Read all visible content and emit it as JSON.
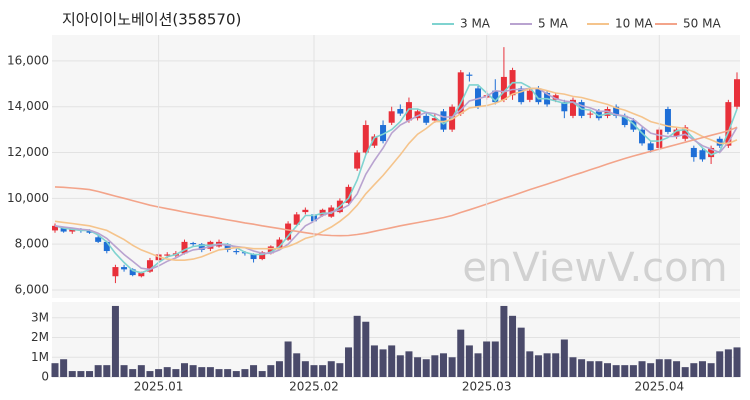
{
  "title": "지아이이노베이션(358570)",
  "watermark": "enViewV.com",
  "chart_data": [
    {
      "type": "candlestick",
      "open": [
        8600,
        8700,
        8550,
        8650,
        8600,
        8300,
        8100,
        6600,
        7000,
        6900,
        6600,
        6800,
        7300,
        7500,
        7500,
        7600,
        8050,
        8000,
        7800,
        7900,
        8000,
        7700,
        7650,
        7550,
        7350,
        7600,
        7850,
        8200,
        8850,
        9400,
        9300,
        9250,
        9200,
        9400,
        9800,
        11300,
        12000,
        12300,
        13200,
        13300,
        13900,
        13400,
        13500,
        13600,
        13400,
        13800,
        13000,
        13700,
        15400,
        14800,
        14400,
        14700,
        14300,
        14500,
        14800,
        14300,
        14800,
        14600,
        14300,
        14200,
        13600,
        14200,
        13700,
        13800,
        13600,
        14000,
        13600,
        13400,
        13000,
        12400,
        12200,
        13900,
        12700,
        12600,
        12200,
        12100,
        11800,
        12600,
        12300,
        14000
      ],
      "high": [
        8900,
        8750,
        8700,
        8700,
        8650,
        8400,
        8150,
        7100,
        7100,
        6950,
        6800,
        7400,
        7600,
        7650,
        7700,
        8200,
        8100,
        8050,
        8150,
        8200,
        8050,
        7800,
        7700,
        7600,
        7700,
        7950,
        8300,
        9000,
        9400,
        9600,
        9350,
        9550,
        9700,
        10000,
        10600,
        12100,
        13400,
        12800,
        13400,
        14000,
        14100,
        14400,
        13900,
        13700,
        13700,
        13900,
        14100,
        15600,
        15500,
        14900,
        14700,
        15200,
        16600,
        15700,
        14900,
        14800,
        14900,
        14700,
        14600,
        14300,
        14400,
        14300,
        13800,
        13900,
        14000,
        14100,
        13700,
        13500,
        13100,
        12500,
        13100,
        14000,
        13100,
        13200,
        12300,
        12200,
        12300,
        12700,
        14300,
        15500
      ],
      "low": [
        8500,
        8500,
        8450,
        8500,
        8450,
        8050,
        7600,
        6300,
        6800,
        6600,
        6550,
        6750,
        7200,
        7400,
        7400,
        7550,
        7900,
        7650,
        7700,
        7850,
        7650,
        7550,
        7500,
        7200,
        7300,
        7550,
        7800,
        8150,
        8800,
        9300,
        8950,
        9200,
        9150,
        9350,
        9750,
        11200,
        11900,
        12200,
        12400,
        13200,
        13600,
        13300,
        13400,
        13200,
        13300,
        12900,
        12900,
        13600,
        15100,
        13900,
        14300,
        14100,
        14200,
        14300,
        14100,
        14200,
        14100,
        14000,
        14200,
        13500,
        13500,
        13500,
        13500,
        13400,
        13500,
        13500,
        13100,
        12900,
        12300,
        12000,
        12100,
        12800,
        12600,
        12500,
        11600,
        11600,
        11500,
        12200,
        12200,
        13900
      ],
      "close": [
        8800,
        8550,
        8650,
        8600,
        8500,
        8100,
        7700,
        7000,
        6900,
        6650,
        6750,
        7300,
        7550,
        7550,
        7600,
        8100,
        8000,
        7750,
        8100,
        8100,
        7750,
        7650,
        7600,
        7350,
        7650,
        7900,
        8200,
        8900,
        9300,
        9500,
        9000,
        9500,
        9600,
        9900,
        10500,
        12000,
        13200,
        12700,
        12500,
        13800,
        13700,
        14200,
        13800,
        13300,
        13500,
        13000,
        14000,
        15500,
        15350,
        14000,
        14500,
        14200,
        15300,
        15600,
        14200,
        14700,
        14200,
        14100,
        14500,
        13800,
        14300,
        13600,
        13700,
        13500,
        13900,
        13600,
        13200,
        13000,
        12400,
        12100,
        13000,
        12900,
        13000,
        13100,
        11800,
        11700,
        12200,
        12300,
        14200,
        15200
      ],
      "up_color": "#e8303a",
      "down_color": "#1e6ed6",
      "series": [
        {
          "name": "3 MA",
          "color": "#7fd3d0",
          "values": [
            8800,
            8700,
            8650,
            8600,
            8600,
            8400,
            8100,
            7600,
            7200,
            6850,
            6750,
            6900,
            7200,
            7450,
            7550,
            7750,
            7900,
            7950,
            7950,
            8000,
            8000,
            7850,
            7650,
            7550,
            7550,
            7650,
            7900,
            8350,
            8800,
            9250,
            9250,
            9350,
            9350,
            9650,
            10000,
            10800,
            11900,
            12650,
            12800,
            13000,
            13350,
            13900,
            13900,
            13750,
            13550,
            13250,
            13500,
            14150,
            14950,
            14950,
            14600,
            14250,
            14650,
            15050,
            15050,
            14850,
            14350,
            14350,
            14250,
            14150,
            14200,
            13900,
            13850,
            13600,
            13700,
            13650,
            13550,
            13250,
            12850,
            12500,
            12500,
            12650,
            12950,
            13000,
            12600,
            12200,
            11900,
            12050,
            12900,
            13900
          ]
        },
        {
          "name": "5 MA",
          "color": "#b9a3d0",
          "values": [
            8800,
            8750,
            8700,
            8650,
            8620,
            8480,
            8250,
            7900,
            7550,
            7250,
            6950,
            6900,
            7050,
            7250,
            7400,
            7600,
            7750,
            7800,
            7900,
            8000,
            7950,
            7900,
            7850,
            7700,
            7600,
            7600,
            7750,
            8000,
            8400,
            8800,
            9000,
            9250,
            9400,
            9500,
            9700,
            10200,
            11050,
            11650,
            12200,
            12850,
            13200,
            13400,
            13600,
            13750,
            13700,
            13550,
            13550,
            13850,
            14250,
            14350,
            14450,
            14700,
            14650,
            14750,
            14750,
            14800,
            14800,
            14550,
            14350,
            14250,
            14200,
            14050,
            13950,
            13800,
            13800,
            13650,
            13600,
            13450,
            13150,
            12850,
            12750,
            12700,
            12700,
            12800,
            12550,
            12300,
            12150,
            12000,
            12450,
            13100
          ]
        },
        {
          "name": "10 MA",
          "color": "#f5c48c",
          "values": [
            9000,
            8950,
            8900,
            8850,
            8800,
            8700,
            8600,
            8400,
            8200,
            7950,
            7750,
            7600,
            7450,
            7350,
            7300,
            7300,
            7350,
            7450,
            7600,
            7750,
            7800,
            7850,
            7850,
            7800,
            7800,
            7800,
            7800,
            7900,
            8050,
            8250,
            8350,
            8550,
            8750,
            9000,
            9300,
            9700,
            10200,
            10600,
            11000,
            11450,
            11900,
            12400,
            12800,
            13050,
            13350,
            13350,
            13450,
            13700,
            13950,
            14000,
            14050,
            14150,
            14300,
            14550,
            14650,
            14800,
            14800,
            14700,
            14600,
            14550,
            14450,
            14400,
            14300,
            14200,
            14100,
            13950,
            13850,
            13700,
            13550,
            13350,
            13250,
            13150,
            13100,
            13050,
            12900,
            12700,
            12550,
            12400,
            12400,
            12550
          ]
        },
        {
          "name": "50 MA",
          "color": "#f3a48a",
          "values": [
            10500,
            10480,
            10450,
            10420,
            10380,
            10300,
            10200,
            10100,
            10000,
            9900,
            9800,
            9700,
            9620,
            9550,
            9480,
            9400,
            9330,
            9260,
            9200,
            9130,
            9060,
            9000,
            8930,
            8870,
            8800,
            8740,
            8680,
            8620,
            8560,
            8500,
            8450,
            8400,
            8380,
            8370,
            8380,
            8420,
            8480,
            8560,
            8640,
            8720,
            8800,
            8870,
            8940,
            9010,
            9080,
            9160,
            9250,
            9380,
            9500,
            9620,
            9750,
            9870,
            10000,
            10120,
            10250,
            10380,
            10500,
            10620,
            10750,
            10870,
            11000,
            11120,
            11250,
            11370,
            11500,
            11620,
            11740,
            11850,
            11950,
            12050,
            12150,
            12250,
            12350,
            12450,
            12550,
            12650,
            12750,
            12850,
            12950,
            13100
          ]
        }
      ],
      "ylim": [
        5650,
        17130
      ],
      "yticks": [
        {
          "value": 6000,
          "label": "6,000"
        },
        {
          "value": 8000,
          "label": "8,000"
        },
        {
          "value": 10000,
          "label": "10,000"
        },
        {
          "value": 12000,
          "label": "12,000"
        },
        {
          "value": 14000,
          "label": "14,000"
        },
        {
          "value": 16000,
          "label": "16,000"
        }
      ],
      "grid": true
    },
    {
      "type": "bar",
      "categories": [
        null,
        null,
        null,
        null,
        null,
        null,
        null,
        null,
        null,
        null,
        null,
        null,
        "2025.01",
        null,
        null,
        null,
        null,
        null,
        null,
        null,
        null,
        null,
        null,
        null,
        null,
        null,
        null,
        null,
        null,
        null,
        "2025.02",
        null,
        null,
        null,
        null,
        null,
        null,
        null,
        null,
        null,
        null,
        null,
        null,
        null,
        null,
        null,
        null,
        null,
        null,
        null,
        "2025.03",
        null,
        null,
        null,
        null,
        null,
        null,
        null,
        null,
        null,
        null,
        null,
        null,
        null,
        null,
        null,
        null,
        null,
        null,
        null,
        "2025.04",
        null,
        null,
        null,
        null,
        null,
        null,
        null,
        null,
        null
      ],
      "values": [
        700000,
        900000,
        300000,
        300000,
        300000,
        600000,
        600000,
        3600000,
        600000,
        400000,
        600000,
        300000,
        400000,
        500000,
        400000,
        700000,
        600000,
        500000,
        500000,
        400000,
        400000,
        300000,
        400000,
        600000,
        300000,
        600000,
        800000,
        1800000,
        1200000,
        800000,
        600000,
        600000,
        800000,
        700000,
        1500000,
        3100000,
        2800000,
        1600000,
        1400000,
        1600000,
        1100000,
        1300000,
        1000000,
        900000,
        1100000,
        1200000,
        1000000,
        2400000,
        1600000,
        1200000,
        1800000,
        1800000,
        3600000,
        3100000,
        2500000,
        1300000,
        1100000,
        1200000,
        1200000,
        1900000,
        1000000,
        900000,
        800000,
        800000,
        700000,
        600000,
        600000,
        600000,
        800000,
        700000,
        900000,
        900000,
        800000,
        500000,
        700000,
        800000,
        700000,
        1300000,
        1400000,
        1500000
      ],
      "color": "#4a4a6a",
      "ylim": [
        0,
        3800000
      ],
      "yticks": [
        0,
        {
          "value": 1000000,
          "label": "1M"
        },
        {
          "value": 2000000,
          "label": "2M"
        },
        {
          "value": 3000000,
          "label": "3M"
        }
      ],
      "grid": true
    }
  ]
}
